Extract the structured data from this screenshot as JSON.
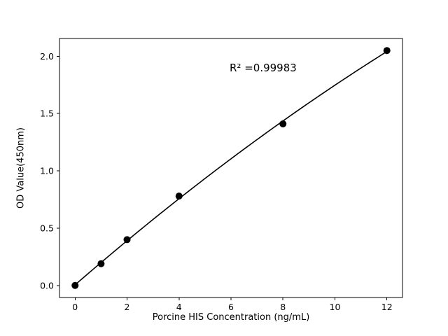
{
  "chart_data": {
    "type": "scatter",
    "fit": "quadratic",
    "x": [
      0,
      1,
      2,
      4,
      8,
      12
    ],
    "y": [
      0.0,
      0.19,
      0.4,
      0.78,
      1.41,
      2.05
    ],
    "title": "",
    "xlabel": "Porcine HIS Concentration (ng/mL)",
    "ylabel": "OD Value(450nm)",
    "annotation": "R² =0.99983",
    "xlim": [
      -0.6,
      12.6
    ],
    "ylim": [
      -0.105,
      2.155
    ],
    "x_ticks": {
      "values": [
        0,
        2,
        4,
        6,
        8,
        10,
        12
      ],
      "labels": [
        "0",
        "2",
        "4",
        "6",
        "8",
        "10",
        "12"
      ]
    },
    "y_ticks": {
      "values": [
        0,
        0.5,
        1.0,
        1.5,
        2.0
      ],
      "labels": [
        "0.0",
        "0.5",
        "1.0",
        "1.5",
        "2.0"
      ]
    },
    "grid": false,
    "legend_position": "none",
    "marker_color": "#000000",
    "line_color": "#000000",
    "background_color": "#ffffff"
  }
}
